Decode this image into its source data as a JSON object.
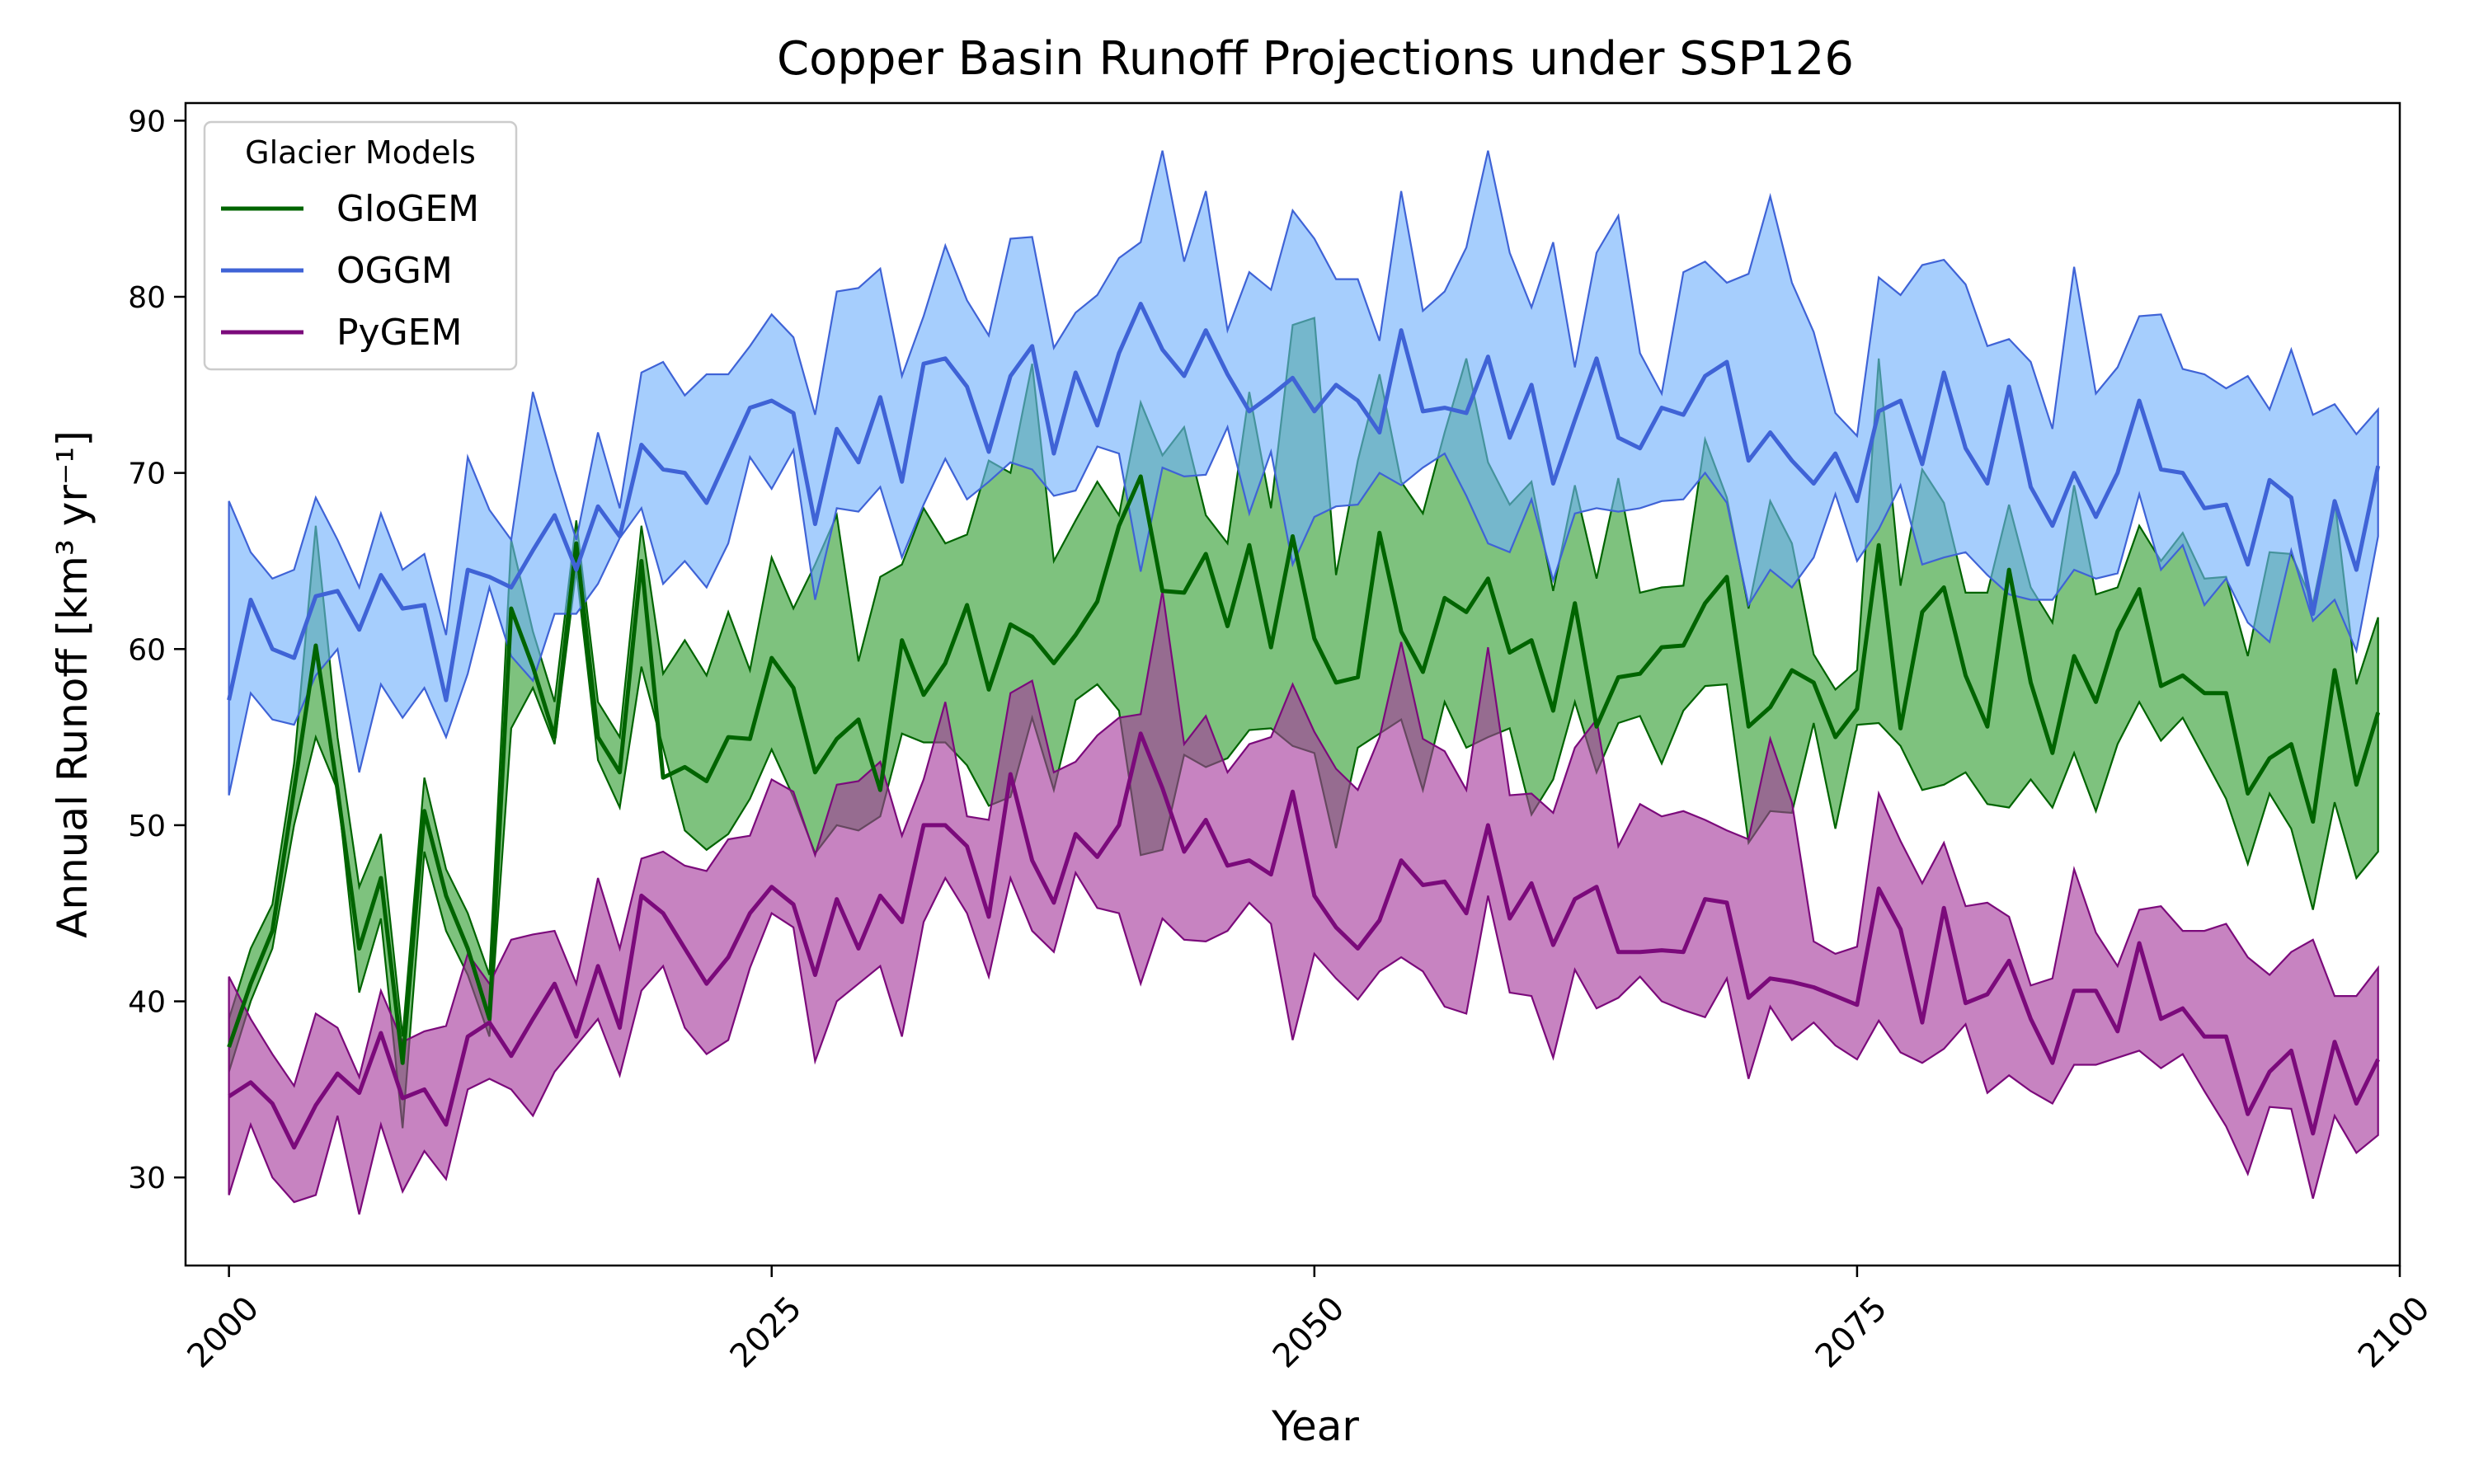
{
  "chart_data": {
    "type": "line",
    "title": "Copper Basin Runoff Projections under SSP126",
    "xlabel": "Year",
    "ylabel": "Annual Runoff [km³ yr⁻¹]",
    "xlim": [
      1998,
      2100
    ],
    "ylim": [
      25,
      91
    ],
    "xticks": [
      2000,
      2025,
      2050,
      2075,
      2100
    ],
    "yticks": [
      30,
      40,
      50,
      60,
      70,
      80,
      90
    ],
    "grid": false,
    "legend": {
      "title": "Glacier Models",
      "placement": "top-left"
    },
    "x_start": 2000,
    "series": [
      {
        "name": "GloGEM",
        "color": "#006400",
        "fill": "#2e9c2e",
        "values": [
          37.4,
          41.0,
          44.0,
          52.0,
          60.2,
          52.0,
          43.0,
          47.0,
          36.5,
          50.8,
          46.0,
          43.0,
          39.0,
          62.3,
          59.0,
          55.0,
          66.0,
          55.0,
          53.0,
          65.0,
          52.7,
          53.3,
          52.5,
          55.0,
          54.9,
          59.5,
          57.8,
          53.0,
          54.9,
          56.0,
          52.0,
          60.5,
          57.4,
          59.2,
          62.5,
          57.7,
          61.4,
          60.7,
          59.2,
          60.8,
          62.7,
          67.0,
          69.8,
          63.3,
          63.2,
          65.4,
          61.3,
          65.9,
          60.1,
          66.4,
          60.6,
          58.1,
          58.4,
          66.6,
          61.0,
          58.7,
          62.9,
          62.1,
          64.0,
          59.8,
          60.5,
          56.5,
          62.6,
          55.6,
          58.4,
          58.6,
          60.1,
          60.2,
          62.6,
          64.1,
          55.6,
          56.7,
          58.8,
          58.1,
          55.0,
          56.6,
          65.9,
          55.5,
          62.1,
          63.5,
          58.5,
          55.6,
          64.5,
          58.1,
          54.1,
          59.6,
          57.0,
          61.0,
          63.4,
          57.9,
          58.5,
          57.5,
          57.5,
          51.8,
          53.8,
          54.6,
          50.2,
          58.8,
          52.3,
          56.4
        ],
        "upper": [
          39.0,
          43.0,
          45.5,
          53.5,
          67.0,
          55.0,
          46.5,
          49.5,
          38.0,
          52.7,
          47.5,
          45.0,
          41.5,
          66.2,
          61.0,
          57.0,
          67.3,
          57.0,
          55.0,
          67.0,
          58.6,
          60.5,
          58.5,
          62.1,
          58.8,
          65.2,
          62.3,
          64.8,
          67.6,
          59.3,
          64.1,
          64.8,
          68.0,
          66.0,
          66.5,
          70.7,
          70.0,
          76.2,
          65.0,
          67.3,
          69.5,
          67.6,
          74.0,
          71.0,
          72.6,
          67.6,
          66.0,
          74.6,
          68.0,
          78.4,
          78.8,
          64.2,
          70.7,
          75.6,
          69.5,
          67.7,
          72.3,
          76.5,
          70.6,
          68.2,
          69.5,
          63.3,
          69.3,
          64.0,
          69.7,
          63.2,
          63.5,
          63.6,
          71.9,
          68.6,
          62.3,
          68.4,
          66.0,
          59.7,
          57.7,
          58.8,
          76.5,
          63.6,
          70.2,
          68.3,
          63.2,
          63.2,
          68.2,
          63.5,
          61.5,
          69.3,
          63.1,
          63.5,
          67.0,
          65.0,
          66.6,
          64.0,
          64.1,
          59.6,
          65.5,
          65.4,
          62.6,
          68.5,
          58.0,
          61.8
        ],
        "lower": [
          36.0,
          40.0,
          43.0,
          50.0,
          55.0,
          52.0,
          40.5,
          44.7,
          32.8,
          48.5,
          44.0,
          41.5,
          38.0,
          55.5,
          57.8,
          54.6,
          64.5,
          53.7,
          51.0,
          59.0,
          54.4,
          49.7,
          48.6,
          49.5,
          51.5,
          54.3,
          51.6,
          48.4,
          50.0,
          49.7,
          50.5,
          55.2,
          54.7,
          54.7,
          53.4,
          51.1,
          51.6,
          56.1,
          52.0,
          57.1,
          58.0,
          56.5,
          48.3,
          48.6,
          54.0,
          53.3,
          53.8,
          55.4,
          55.5,
          54.5,
          54.1,
          48.7,
          54.4,
          55.2,
          56.0,
          52.0,
          57.0,
          54.4,
          55.0,
          55.5,
          50.6,
          52.6,
          57.0,
          53.0,
          55.8,
          56.2,
          53.5,
          56.5,
          57.9,
          58.0,
          49.0,
          50.8,
          50.7,
          55.8,
          49.8,
          55.7,
          55.8,
          54.5,
          52.0,
          52.3,
          53.0,
          51.2,
          51.0,
          52.6,
          51.0,
          54.1,
          50.8,
          54.6,
          57.0,
          54.8,
          56.1,
          53.8,
          51.5,
          47.8,
          51.8,
          49.8,
          45.2,
          51.3,
          47.0,
          48.5
        ]
      },
      {
        "name": "OGGM",
        "color": "#3f63d6",
        "fill": "#6fb0fb",
        "values": [
          57.1,
          62.8,
          60.0,
          59.5,
          63.0,
          63.3,
          61.1,
          64.2,
          62.3,
          62.5,
          57.1,
          64.5,
          64.1,
          63.5,
          65.6,
          67.6,
          64.5,
          68.1,
          66.4,
          71.6,
          70.2,
          70.0,
          68.3,
          71.0,
          73.7,
          74.1,
          73.4,
          67.1,
          72.5,
          70.6,
          74.3,
          69.5,
          76.2,
          76.5,
          74.9,
          71.2,
          75.5,
          77.2,
          71.1,
          75.7,
          72.7,
          76.8,
          79.6,
          77.0,
          75.5,
          78.1,
          75.6,
          73.5,
          74.4,
          75.4,
          73.5,
          75.0,
          74.1,
          72.3,
          78.1,
          73.5,
          73.7,
          73.4,
          76.6,
          72.0,
          75.0,
          69.4,
          73.0,
          76.5,
          72.0,
          71.4,
          73.7,
          73.3,
          75.5,
          76.3,
          70.7,
          72.3,
          70.7,
          69.4,
          71.1,
          68.4,
          73.5,
          74.1,
          70.5,
          75.7,
          71.4,
          69.4,
          74.9,
          69.2,
          67.0,
          70.0,
          67.5,
          70.0,
          74.1,
          70.2,
          70.0,
          68.0,
          68.2,
          64.8,
          69.6,
          68.6,
          62.0,
          68.4,
          64.5,
          70.4
        ],
        "upper": [
          68.4,
          65.5,
          64.0,
          64.5,
          68.6,
          66.2,
          63.5,
          67.7,
          64.5,
          65.4,
          60.8,
          70.9,
          67.9,
          66.2,
          74.6,
          70.2,
          66.2,
          72.3,
          68.0,
          75.7,
          76.3,
          74.4,
          75.6,
          75.6,
          77.2,
          79.0,
          77.7,
          73.3,
          80.3,
          80.5,
          81.6,
          75.5,
          78.9,
          82.9,
          79.8,
          77.8,
          83.3,
          83.4,
          77.1,
          79.1,
          80.1,
          82.2,
          83.1,
          88.3,
          82.0,
          86.0,
          78.1,
          81.4,
          80.4,
          84.9,
          83.3,
          81.0,
          81.0,
          77.5,
          86.0,
          79.2,
          80.3,
          82.8,
          88.3,
          82.5,
          79.4,
          83.1,
          76.0,
          82.5,
          84.6,
          76.8,
          74.5,
          81.4,
          82.0,
          80.8,
          81.3,
          85.7,
          80.8,
          78.0,
          73.4,
          72.1,
          81.1,
          80.1,
          81.8,
          82.1,
          80.7,
          77.2,
          77.6,
          76.3,
          72.5,
          81.7,
          74.5,
          76.0,
          78.9,
          79.0,
          75.9,
          75.6,
          74.8,
          75.5,
          73.6,
          77.0,
          73.3,
          73.9,
          72.2,
          73.6
        ],
        "lower": [
          51.7,
          57.5,
          56.0,
          55.7,
          58.5,
          60.0,
          53.0,
          58.0,
          56.1,
          57.8,
          55.0,
          58.6,
          63.5,
          59.6,
          58.2,
          62.0,
          62.0,
          63.7,
          66.3,
          68.0,
          63.7,
          65.0,
          63.5,
          66.0,
          70.9,
          69.1,
          71.3,
          62.8,
          68.0,
          67.8,
          69.2,
          65.2,
          68.2,
          70.8,
          68.5,
          69.5,
          70.6,
          70.2,
          68.7,
          69.0,
          71.5,
          71.1,
          64.4,
          70.3,
          69.8,
          69.9,
          72.6,
          67.7,
          71.2,
          64.8,
          67.5,
          68.1,
          68.2,
          70.0,
          69.3,
          70.3,
          71.1,
          68.7,
          66.0,
          65.5,
          68.5,
          63.9,
          67.7,
          68.0,
          67.8,
          68.0,
          68.4,
          68.5,
          70.0,
          68.3,
          62.5,
          64.5,
          63.5,
          65.2,
          68.8,
          65.0,
          66.8,
          69.3,
          64.8,
          65.2,
          65.5,
          64.2,
          63.1,
          62.8,
          62.8,
          64.5,
          64.0,
          64.3,
          68.8,
          64.5,
          65.9,
          62.5,
          64.0,
          61.5,
          60.4,
          65.6,
          61.6,
          62.8,
          59.9,
          66.4
        ]
      },
      {
        "name": "PyGEM",
        "color": "#7b0a7b",
        "fill": "#a5379b",
        "values": [
          34.6,
          35.4,
          34.2,
          31.7,
          34.1,
          35.9,
          34.8,
          38.2,
          34.5,
          35.0,
          33.0,
          38.0,
          38.8,
          36.9,
          39.0,
          41.0,
          38.0,
          42.0,
          38.5,
          46.0,
          45.0,
          43.0,
          41.0,
          42.5,
          45.0,
          46.5,
          45.5,
          41.5,
          45.8,
          43.0,
          46.0,
          44.5,
          50.0,
          50.0,
          48.8,
          44.8,
          52.9,
          48.0,
          45.6,
          49.5,
          48.2,
          50.0,
          55.2,
          52.1,
          48.5,
          50.3,
          47.7,
          48.0,
          47.2,
          51.9,
          46.0,
          44.2,
          43.0,
          44.6,
          48.0,
          46.6,
          46.8,
          45.0,
          50.0,
          44.7,
          46.7,
          43.2,
          45.8,
          46.5,
          42.8,
          42.8,
          42.9,
          42.8,
          45.8,
          45.6,
          40.2,
          41.3,
          41.1,
          40.8,
          40.3,
          39.8,
          46.4,
          44.1,
          38.8,
          45.3,
          39.9,
          40.4,
          42.3,
          39.0,
          36.5,
          40.6,
          40.6,
          38.3,
          43.3,
          39.0,
          39.6,
          38.0,
          38.0,
          33.6,
          36.0,
          37.2,
          32.5,
          37.7,
          34.2,
          36.7
        ],
        "upper": [
          41.4,
          39.0,
          37.0,
          35.2,
          39.3,
          38.5,
          35.7,
          40.6,
          37.7,
          38.3,
          38.6,
          42.7,
          41.0,
          43.5,
          43.8,
          44.0,
          41.0,
          47.0,
          43.0,
          48.1,
          48.5,
          47.7,
          47.4,
          49.2,
          49.4,
          52.6,
          51.9,
          48.3,
          52.3,
          52.5,
          53.6,
          49.4,
          52.6,
          57.0,
          50.5,
          50.3,
          57.5,
          58.2,
          53.0,
          53.6,
          55.1,
          56.1,
          56.3,
          63.3,
          54.6,
          56.2,
          53.0,
          54.6,
          55.0,
          58.0,
          55.3,
          53.2,
          52.0,
          55.0,
          60.4,
          54.9,
          54.2,
          52.0,
          60.1,
          51.7,
          51.8,
          50.7,
          54.4,
          56.0,
          48.8,
          51.2,
          50.5,
          50.8,
          50.3,
          49.7,
          49.2,
          54.9,
          51.3,
          43.4,
          42.7,
          43.1,
          51.8,
          49.1,
          46.7,
          49.0,
          45.4,
          45.6,
          44.8,
          40.9,
          41.3,
          47.5,
          43.9,
          42.0,
          45.2,
          45.4,
          44.0,
          44.0,
          44.4,
          42.5,
          41.5,
          42.8,
          43.5,
          40.3,
          40.3,
          41.9
        ],
        "lower": [
          29.0,
          33.0,
          30.0,
          28.6,
          29.0,
          33.5,
          27.9,
          33.0,
          29.2,
          31.5,
          29.9,
          35.0,
          35.6,
          35.0,
          33.5,
          36.0,
          37.5,
          39.0,
          35.8,
          40.6,
          42.0,
          38.5,
          37.0,
          37.8,
          41.9,
          45.0,
          44.2,
          36.6,
          40.0,
          41.0,
          42.0,
          38.0,
          44.5,
          47.0,
          45.0,
          41.4,
          47.0,
          44.0,
          42.8,
          47.3,
          45.3,
          45.0,
          41.0,
          44.7,
          43.5,
          43.4,
          44.0,
          45.6,
          44.4,
          37.8,
          42.7,
          41.3,
          40.1,
          41.7,
          42.5,
          41.7,
          39.7,
          39.3,
          46.0,
          40.5,
          40.3,
          36.8,
          41.8,
          39.6,
          40.2,
          41.4,
          40.0,
          39.5,
          39.1,
          41.3,
          35.6,
          39.7,
          37.8,
          38.8,
          37.5,
          36.7,
          38.9,
          37.1,
          36.5,
          37.3,
          38.7,
          34.8,
          35.8,
          34.9,
          34.2,
          36.4,
          36.4,
          36.8,
          37.2,
          36.2,
          37.0,
          34.9,
          32.9,
          30.2,
          34.0,
          33.9,
          28.8,
          33.5,
          31.4,
          32.4
        ]
      }
    ]
  }
}
